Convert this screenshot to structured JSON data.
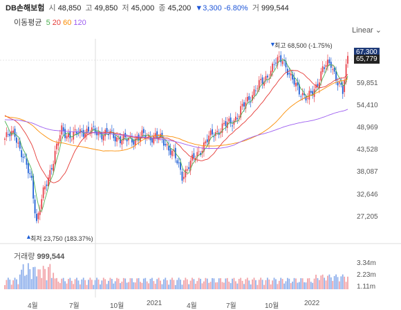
{
  "stock": {
    "name": "DB손해보험",
    "open_label": "시",
    "open": "48,850",
    "high_label": "고",
    "high": "49,850",
    "low_label": "저",
    "low": "45,000",
    "close_label": "종",
    "close": "45,200",
    "change": "▼3,300",
    "change_pct": "-6.80%",
    "volume_label": "거",
    "volume": "999,544"
  },
  "ma": {
    "label": "이동평균",
    "items": [
      {
        "text": "5",
        "color": "#4caf50"
      },
      {
        "text": "20",
        "color": "#e53935"
      },
      {
        "text": "60",
        "color": "#fb8c00"
      },
      {
        "text": "120",
        "color": "#9c5cf0"
      }
    ]
  },
  "scale_selector": "Linear",
  "price_axis": {
    "ticks": [
      "59,851",
      "54,410",
      "48,969",
      "43,528",
      "38,087",
      "32,646",
      "27,205"
    ],
    "tags": [
      {
        "text": "67,300",
        "bg": "#1e3a78"
      },
      {
        "text": "65,779",
        "bg": "#222222"
      }
    ]
  },
  "annotations": {
    "high": "최고 68,500 (-1.75%)",
    "low": "최저 23,750 (183.37%)"
  },
  "volume": {
    "label": "거래량",
    "value": "999,544",
    "ticks": [
      "3.34m",
      "2.23m",
      "1.11m"
    ]
  },
  "x_axis": [
    "4월",
    "7월",
    "10월",
    "2021",
    "4월",
    "7월",
    "10월",
    "2022"
  ],
  "chart_data": {
    "type": "candlestick",
    "price_range": [
      21805,
      69294
    ],
    "volume_range": [
      0,
      4450000
    ],
    "up_color": "#e8424b",
    "down_color": "#1e5fd6",
    "anchors": [
      [
        0,
        45500
      ],
      [
        6,
        47000
      ],
      [
        11,
        40500
      ],
      [
        16,
        35500
      ],
      [
        19,
        25000
      ],
      [
        23,
        32000
      ],
      [
        28,
        39000
      ],
      [
        34,
        47500
      ],
      [
        40,
        46000
      ],
      [
        47,
        47500
      ],
      [
        55,
        47000
      ],
      [
        63,
        46500
      ],
      [
        72,
        45000
      ],
      [
        82,
        46000
      ],
      [
        90,
        46000
      ],
      [
        96,
        44500
      ],
      [
        101,
        41500
      ],
      [
        106,
        36500
      ],
      [
        112,
        40000
      ],
      [
        118,
        43500
      ],
      [
        124,
        46500
      ],
      [
        129,
        48000
      ],
      [
        135,
        49500
      ],
      [
        140,
        51500
      ],
      [
        145,
        55000
      ],
      [
        150,
        57500
      ],
      [
        156,
        60500
      ],
      [
        162,
        64000
      ],
      [
        166,
        65500
      ],
      [
        171,
        60000
      ],
      [
        176,
        57500
      ],
      [
        181,
        55000
      ],
      [
        185,
        57500
      ],
      [
        190,
        62500
      ],
      [
        195,
        64000
      ],
      [
        199,
        59500
      ],
      [
        202,
        56500
      ],
      [
        205,
        65779
      ]
    ],
    "ma_windows": [
      5,
      20,
      60,
      120
    ],
    "visible_high": 68500,
    "visible_low": 23750
  }
}
